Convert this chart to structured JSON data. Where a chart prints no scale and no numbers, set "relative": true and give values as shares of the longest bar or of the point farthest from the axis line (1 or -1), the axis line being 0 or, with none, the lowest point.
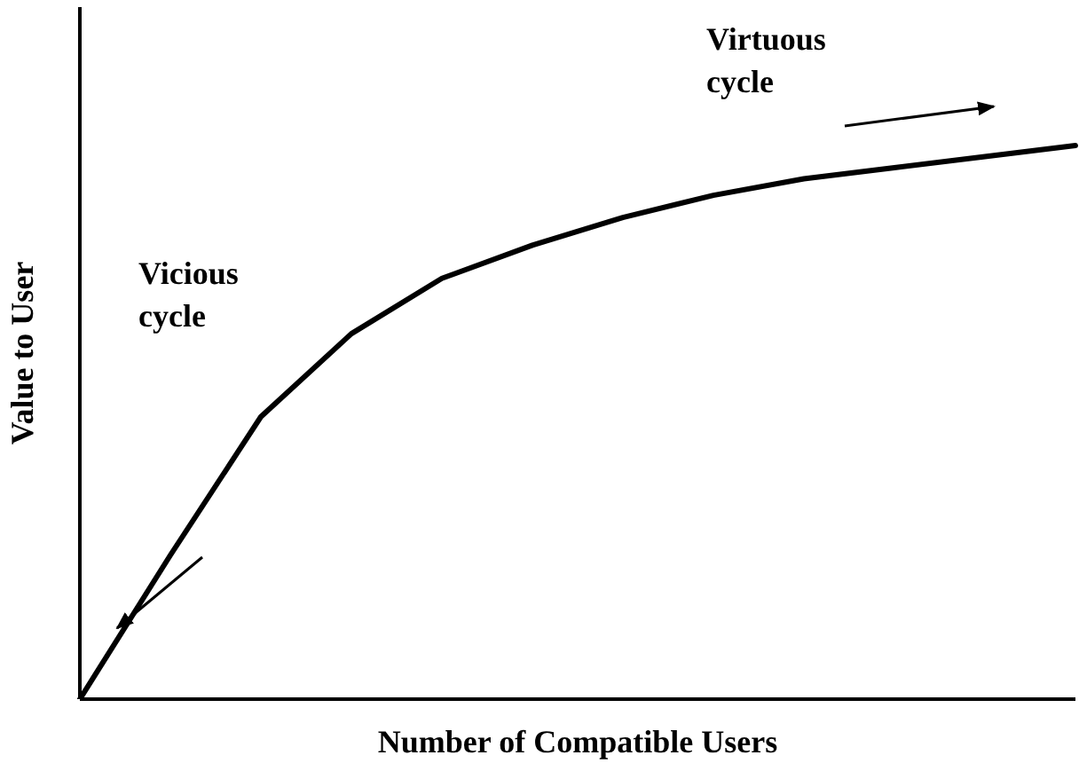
{
  "chart_data": {
    "type": "line",
    "relative": true,
    "xlabel": "Number of Compatible Users",
    "ylabel": "Value to User",
    "categories": [
      null,
      null,
      null,
      null,
      null,
      null,
      null,
      null,
      null,
      null,
      null,
      null
    ],
    "series": [
      {
        "color": "#000000",
        "values": [
          0,
          0.26,
          0.51,
          0.66,
          0.76,
          0.82,
          0.87,
          0.91,
          0.94,
          0.96,
          0.98,
          1
        ]
      }
    ],
    "annotations": [
      "Virtuous cycle",
      "Vicious cycle"
    ]
  }
}
